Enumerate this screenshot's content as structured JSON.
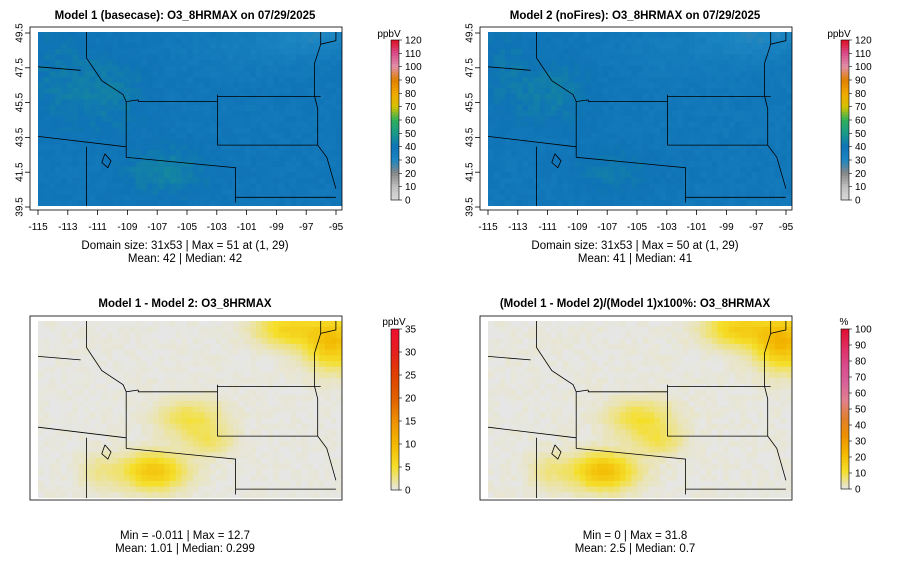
{
  "panels": [
    {
      "title": "Model 1 (basecase): O3_8HRMAX on 07/29/2025",
      "unit": "ppbV",
      "colorbar_ticks": [
        "0",
        "10",
        "20",
        "30",
        "40",
        "50",
        "60",
        "70",
        "80",
        "90",
        "100",
        "110",
        "120"
      ],
      "stat_line1": "Domain size: 31x53 | Max = 51 at (1, 29)",
      "stat_line2": "Mean: 42 |  Median: 42",
      "has_axes": true,
      "x_ticks": [
        "-115",
        "-113",
        "-111",
        "-109",
        "-107",
        "-105",
        "-103",
        "-101",
        "-99",
        "-97",
        "-95"
      ],
      "y_ticks": [
        "39.5",
        "41.5",
        "43.5",
        "45.5",
        "47.5",
        "49.5"
      ],
      "field": "abs",
      "variant": 0
    },
    {
      "title": "Model 2 (noFires): O3_8HRMAX on 07/29/2025",
      "unit": "ppbV",
      "colorbar_ticks": [
        "0",
        "10",
        "20",
        "30",
        "40",
        "50",
        "60",
        "70",
        "80",
        "90",
        "100",
        "110",
        "120"
      ],
      "stat_line1": "Domain size: 31x53 | Max = 50 at (1, 29)",
      "stat_line2": "Mean: 41 |  Median: 41",
      "has_axes": true,
      "x_ticks": [
        "-115",
        "-113",
        "-111",
        "-109",
        "-107",
        "-105",
        "-103",
        "-101",
        "-99",
        "-97",
        "-95"
      ],
      "y_ticks": [
        "39.5",
        "41.5",
        "43.5",
        "45.5",
        "47.5",
        "49.5"
      ],
      "field": "abs",
      "variant": 1
    },
    {
      "title": "Model 1 - Model 2: O3_8HRMAX",
      "unit": "ppbV",
      "colorbar_ticks": [
        "0",
        "5",
        "10",
        "15",
        "20",
        "25",
        "30",
        "35"
      ],
      "stat_line1": "Min = -0.011 | Max = 12.7",
      "stat_line2": "Mean: 1.01 |  Median: 0.299",
      "has_axes": false,
      "field": "diff"
    },
    {
      "title": "(Model 1 - Model 2)/(Model 1)x100%: O3_8HRMAX",
      "unit": "%",
      "colorbar_ticks": [
        "0",
        "10",
        "20",
        "30",
        "40",
        "50",
        "60",
        "70",
        "80",
        "90",
        "100"
      ],
      "stat_line1": "Min = 0 | Max = 31.8",
      "stat_line2": "Mean: 2.5 |  Median: 0.7",
      "has_axes": false,
      "field": "pct"
    }
  ],
  "colors": {
    "abs_scale": [
      "#d9d9d9",
      "#bfbfbf",
      "#878787",
      "#1c86c2",
      "#0f73b6",
      "#1a9a8a",
      "#2fb05a",
      "#d8c200",
      "#f0a800",
      "#e08000",
      "#e28fa8",
      "#d94a8a",
      "#e01020"
    ],
    "diff_scale": [
      "#e6e6e6",
      "#f5df2a",
      "#f3b800",
      "#ee9000",
      "#e06000",
      "#e04000",
      "#e42020",
      "#f01030"
    ],
    "pct_scale": [
      "#e6e6e6",
      "#f5df2a",
      "#f3b800",
      "#ee9000",
      "#e08030",
      "#e08090",
      "#d8609a",
      "#d94a8a",
      "#e02c60",
      "#e01030"
    ]
  }
}
